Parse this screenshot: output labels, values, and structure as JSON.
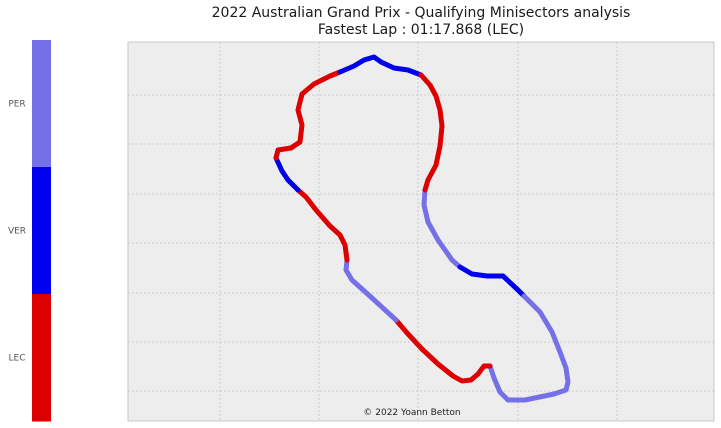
{
  "chart_data": {
    "type": "track-map",
    "title": "2022 Australian Grand Prix - Qualifying Minisectors analysis",
    "subtitle": "Fastest Lap : 01:17.868 (LEC)",
    "credit": "© 2022 Yoann Betton",
    "grid": true,
    "legend_placement": "left",
    "drivers": [
      {
        "code": "PER",
        "color": "#7570e8"
      },
      {
        "code": "VER",
        "color": "#0000ee"
      },
      {
        "code": "LEC",
        "color": "#dd0000"
      }
    ],
    "minisectors": [
      {
        "index": 1,
        "fastest": "PER"
      },
      {
        "index": 2,
        "fastest": "VER"
      },
      {
        "index": 3,
        "fastest": "PER"
      },
      {
        "index": 4,
        "fastest": "LEC"
      },
      {
        "index": 5,
        "fastest": "LEC"
      },
      {
        "index": 6,
        "fastest": "PER"
      },
      {
        "index": 7,
        "fastest": "LEC"
      },
      {
        "index": 8,
        "fastest": "PER"
      },
      {
        "index": 9,
        "fastest": "VER"
      },
      {
        "index": 10,
        "fastest": "LEC"
      },
      {
        "index": 11,
        "fastest": "VER"
      },
      {
        "index": 12,
        "fastest": "LEC"
      },
      {
        "index": 13,
        "fastest": "VER"
      },
      {
        "index": 14,
        "fastest": "PER"
      },
      {
        "index": 15,
        "fastest": "VER"
      },
      {
        "index": 16,
        "fastest": "PER"
      }
    ]
  }
}
